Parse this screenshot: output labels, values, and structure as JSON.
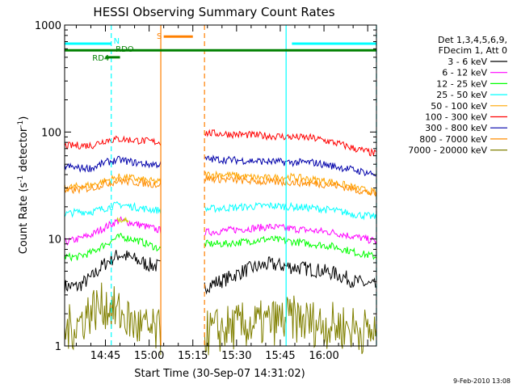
{
  "chart_data": {
    "type": "line",
    "title": "HESSI Observing Summary Count Rates",
    "xlabel": "Start Time (30-Sep-07 14:31:02)",
    "ylabel_main": "Count Rate (s",
    "ylabel_sup1": "-1",
    "ylabel_mid": " detector",
    "ylabel_sup2": "-1",
    "ylabel_end": ")",
    "yscale": "log",
    "ylim": [
      1,
      1000
    ],
    "xlim": [
      "14:31",
      "16:18"
    ],
    "xlim_minutes": [
      -14,
      93
    ],
    "x_ticks": [
      {
        "label": "14:45",
        "m": 0
      },
      {
        "label": "15:00",
        "m": 15
      },
      {
        "label": "15:15",
        "m": 30
      },
      {
        "label": "15:30",
        "m": 45
      },
      {
        "label": "15:45",
        "m": 60
      },
      {
        "label": "16:00",
        "m": 75
      }
    ],
    "y_ticks": [
      {
        "label": "1",
        "v": 1
      },
      {
        "label": "10",
        "v": 10
      },
      {
        "label": "100",
        "v": 100
      },
      {
        "label": "1000",
        "v": 1000
      }
    ],
    "legend_header": [
      "Det 1,3,4,5,6,9,",
      "FDecim 1, Att 0"
    ],
    "series": [
      {
        "name": "3 - 6 keV",
        "color": "#000000",
        "seg1": [
          3.6,
          3.6,
          4.4,
          6.0,
          7.2,
          6.5,
          5.8,
          5.5
        ],
        "seg2": [
          3.6,
          4.2,
          5.2,
          5.8,
          5.5,
          5.2,
          4.8,
          4.0,
          3.6
        ]
      },
      {
        "name": "6 - 12 keV",
        "color": "#ff00ff",
        "seg1": [
          9.3,
          10.0,
          11.0,
          13.0,
          15.0,
          14.0,
          13.0,
          12.0
        ],
        "seg2": [
          11.5,
          12.0,
          12.5,
          13.0,
          12.5,
          12.0,
          11.5,
          10.5,
          9.5
        ]
      },
      {
        "name": "12 - 25 keV",
        "color": "#00ff00",
        "seg1": [
          6.8,
          6.8,
          7.5,
          9.0,
          10.5,
          10.0,
          9.0,
          8.0
        ],
        "seg2": [
          9.0,
          9.0,
          9.5,
          10.0,
          9.5,
          9.0,
          8.5,
          7.5,
          6.8
        ]
      },
      {
        "name": "25 - 50 keV",
        "color": "#00ffff",
        "seg1": [
          17.0,
          18.0,
          18.0,
          19.5,
          21.0,
          20.0,
          19.0,
          18.5
        ],
        "seg2": [
          19.0,
          19.5,
          20.0,
          20.5,
          20.0,
          19.5,
          18.5,
          17.0,
          16.0
        ]
      },
      {
        "name": "50 - 100 keV",
        "color": "#ffa500",
        "seg1": [
          30.0,
          31.0,
          32.0,
          35.0,
          38.0,
          37.0,
          35.0,
          34.0
        ],
        "seg2": [
          40.0,
          40.0,
          38.0,
          37.0,
          38.0,
          36.0,
          34.0,
          30.0,
          27.0
        ]
      },
      {
        "name": "100 - 300 keV",
        "color": "#ff0000",
        "seg1": [
          74.0,
          75.0,
          75.0,
          84.0,
          86.0,
          84.0,
          82.0,
          80.0
        ],
        "seg2": [
          98.0,
          96.0,
          94.0,
          92.0,
          90.0,
          88.0,
          80.0,
          70.0,
          62.0
        ]
      },
      {
        "name": "300 - 800 keV",
        "color": "#0000aa",
        "seg1": [
          48.0,
          46.0,
          46.0,
          52.0,
          55.0,
          52.0,
          50.0,
          50.0
        ],
        "seg2": [
          56.0,
          55.0,
          54.0,
          53.0,
          52.0,
          52.0,
          48.0,
          44.0,
          40.0
        ]
      },
      {
        "name": "800 - 7000 keV",
        "color": "#ff8c00",
        "seg1": [
          28.0,
          29.0,
          30.0,
          33.0,
          35.0,
          34.0,
          33.0,
          32.0
        ],
        "seg2": [
          37.0,
          36.0,
          35.0,
          34.0,
          34.0,
          33.0,
          32.0,
          29.0,
          26.0
        ]
      },
      {
        "name": "7000 - 20000 keV",
        "color": "#808000",
        "seg1": [
          1.4,
          1.6,
          2.2,
          2.4,
          2.0,
          1.6,
          1.4,
          1.3
        ],
        "seg2": [
          1.3,
          1.5,
          1.6,
          1.8,
          1.6,
          1.5,
          1.3
        ]
      }
    ],
    "yellow_dip": {
      "color": "#cccc00",
      "from": 4,
      "to": 8,
      "value": 15
    },
    "flag_labels": {
      "n": "N",
      "rdo": "RDO",
      "rd4": "RD4",
      "s": "S"
    },
    "flags": [
      {
        "label_key": "n",
        "color": "#00ffff",
        "value": 670,
        "from": -14,
        "to": 2
      },
      {
        "label_key": "n",
        "color": "#00ffff",
        "value": 670,
        "from": 64,
        "to": 93
      },
      {
        "label_key": "rdo",
        "color": "#008000",
        "value": 580,
        "from": -14,
        "to": 93
      },
      {
        "label_key": "rd4",
        "color": "#008000",
        "value": 500,
        "from": 0,
        "to": 5
      },
      {
        "label_key": "s",
        "color": "#ff8000",
        "value": 780,
        "from": 20,
        "to": 30
      }
    ],
    "vlines": [
      {
        "m": 2,
        "color": "#00ffff",
        "dash": true
      },
      {
        "m": 19,
        "color": "#ff8000",
        "dash": false
      },
      {
        "m": 34,
        "color": "#ff8000",
        "dash": true
      },
      {
        "m": 62,
        "color": "#00ffff",
        "dash": false
      },
      {
        "m": 93,
        "color": "#00ffff",
        "dash": true
      }
    ],
    "grid": false,
    "legend_position": "right",
    "footer": "9-Feb-2010 13:08"
  }
}
